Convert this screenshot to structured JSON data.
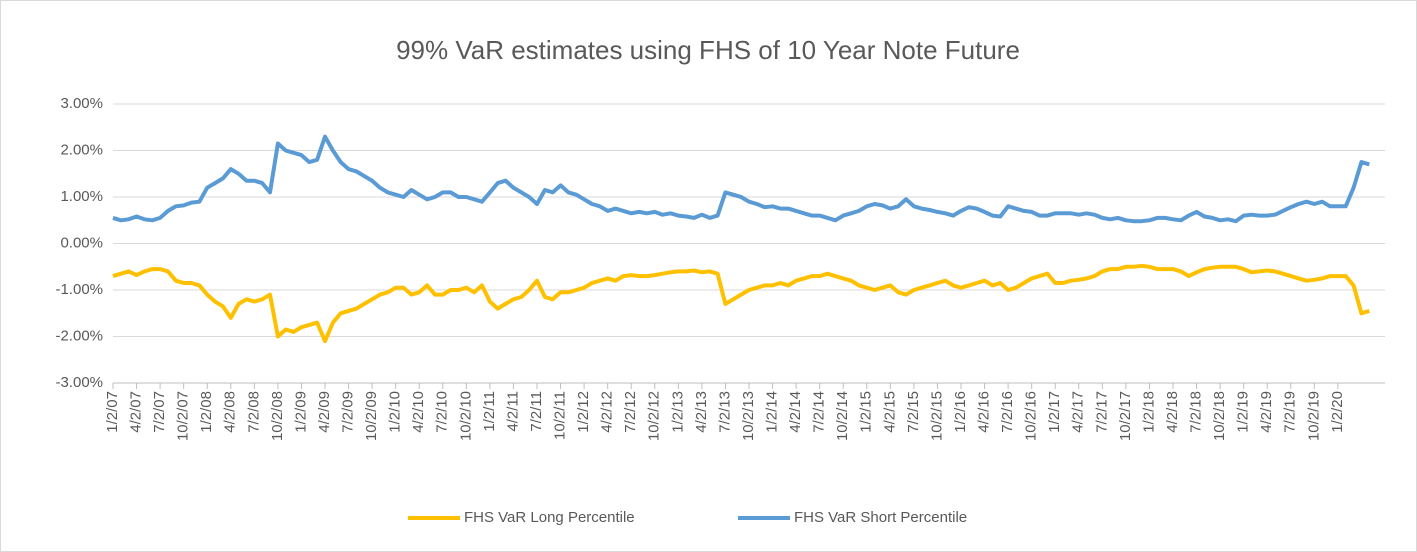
{
  "chart_data": {
    "type": "line",
    "title": "99% VaR estimates using FHS of 10 Year Note Future",
    "categories": [
      "1/2/07",
      null,
      null,
      "4/2/07",
      null,
      null,
      "7/2/07",
      null,
      null,
      "10/2/07",
      null,
      null,
      "1/2/08",
      null,
      null,
      "4/2/08",
      null,
      null,
      "7/2/08",
      null,
      null,
      "10/2/08",
      null,
      null,
      "1/2/09",
      null,
      null,
      "4/2/09",
      null,
      null,
      "7/2/09",
      null,
      null,
      "10/2/09",
      null,
      null,
      "1/2/10",
      null,
      null,
      "4/2/10",
      null,
      null,
      "7/2/10",
      null,
      null,
      "10/2/10",
      null,
      null,
      "1/2/11",
      null,
      null,
      "4/2/11",
      null,
      null,
      "7/2/11",
      null,
      null,
      "10/2/11",
      null,
      null,
      "1/2/12",
      null,
      null,
      "4/2/12",
      null,
      null,
      "7/2/12",
      null,
      null,
      "10/2/12",
      null,
      null,
      "1/2/13",
      null,
      null,
      "4/2/13",
      null,
      null,
      "7/2/13",
      null,
      null,
      "10/2/13",
      null,
      null,
      "1/2/14",
      null,
      null,
      "4/2/14",
      null,
      null,
      "7/2/14",
      null,
      null,
      "10/2/14",
      null,
      null,
      "1/2/15",
      null,
      null,
      "4/2/15",
      null,
      null,
      "7/2/15",
      null,
      null,
      "10/2/15",
      null,
      null,
      "1/2/16",
      null,
      null,
      "4/2/16",
      null,
      null,
      "7/2/16",
      null,
      null,
      "10/2/16",
      null,
      null,
      "1/2/17",
      null,
      null,
      "4/2/17",
      null,
      null,
      "7/2/17",
      null,
      null,
      "10/2/17",
      null,
      null,
      "1/2/18",
      null,
      null,
      "4/2/18",
      null,
      null,
      "7/2/18",
      null,
      null,
      "10/2/18",
      null,
      null,
      "1/2/19",
      null,
      null,
      "4/2/19",
      null,
      null,
      "7/2/19",
      null,
      null,
      "10/2/19",
      null,
      null,
      "1/2/20",
      null,
      null,
      null,
      null
    ],
    "series": [
      {
        "name": "FHS VaR Long Percentile",
        "color": "#FFC000",
        "values": [
          -0.7,
          -0.65,
          -0.6,
          -0.68,
          -0.6,
          -0.55,
          -0.55,
          -0.6,
          -0.8,
          -0.85,
          -0.85,
          -0.9,
          -1.1,
          -1.25,
          -1.35,
          -1.6,
          -1.3,
          -1.2,
          -1.25,
          -1.2,
          -1.1,
          -2.0,
          -1.85,
          -1.9,
          -1.8,
          -1.75,
          -1.7,
          -2.1,
          -1.7,
          -1.5,
          -1.45,
          -1.4,
          -1.3,
          -1.2,
          -1.1,
          -1.05,
          -0.95,
          -0.95,
          -1.1,
          -1.05,
          -0.9,
          -1.1,
          -1.1,
          -1.0,
          -1.0,
          -0.95,
          -1.05,
          -0.9,
          -1.25,
          -1.4,
          -1.3,
          -1.2,
          -1.15,
          -1.0,
          -0.8,
          -1.15,
          -1.2,
          -1.05,
          -1.05,
          -1.0,
          -0.95,
          -0.85,
          -0.8,
          -0.75,
          -0.8,
          -0.7,
          -0.68,
          -0.7,
          -0.7,
          -0.68,
          -0.65,
          -0.62,
          -0.6,
          -0.6,
          -0.58,
          -0.62,
          -0.6,
          -0.65,
          -1.3,
          -1.2,
          -1.1,
          -1.0,
          -0.95,
          -0.9,
          -0.9,
          -0.85,
          -0.9,
          -0.8,
          -0.75,
          -0.7,
          -0.7,
          -0.65,
          -0.7,
          -0.75,
          -0.8,
          -0.9,
          -0.95,
          -1.0,
          -0.95,
          -0.9,
          -1.05,
          -1.1,
          -1.0,
          -0.95,
          -0.9,
          -0.85,
          -0.8,
          -0.9,
          -0.95,
          -0.9,
          -0.85,
          -0.8,
          -0.9,
          -0.85,
          -1.0,
          -0.95,
          -0.85,
          -0.75,
          -0.7,
          -0.65,
          -0.85,
          -0.85,
          -0.8,
          -0.78,
          -0.75,
          -0.7,
          -0.6,
          -0.55,
          -0.55,
          -0.5,
          -0.5,
          -0.48,
          -0.5,
          -0.55,
          -0.55,
          -0.55,
          -0.6,
          -0.7,
          -0.62,
          -0.55,
          -0.52,
          -0.5,
          -0.5,
          -0.5,
          -0.55,
          -0.62,
          -0.6,
          -0.58,
          -0.6,
          -0.65,
          -0.7,
          -0.75,
          -0.8,
          -0.78,
          -0.75,
          -0.7,
          -0.7,
          -0.7,
          -0.9,
          -1.5,
          -1.45
        ]
      },
      {
        "name": "FHS VaR Short Percentile",
        "color": "#5B9BD5",
        "values": [
          0.55,
          0.5,
          0.52,
          0.58,
          0.52,
          0.5,
          0.55,
          0.7,
          0.8,
          0.82,
          0.88,
          0.9,
          1.2,
          1.3,
          1.4,
          1.6,
          1.5,
          1.35,
          1.35,
          1.3,
          1.1,
          2.15,
          2.0,
          1.95,
          1.9,
          1.75,
          1.8,
          2.3,
          2.0,
          1.75,
          1.6,
          1.55,
          1.45,
          1.35,
          1.2,
          1.1,
          1.05,
          1.0,
          1.15,
          1.05,
          0.95,
          1.0,
          1.1,
          1.1,
          1.0,
          1.0,
          0.95,
          0.9,
          1.1,
          1.3,
          1.35,
          1.2,
          1.1,
          1.0,
          0.85,
          1.15,
          1.1,
          1.25,
          1.1,
          1.05,
          0.95,
          0.85,
          0.8,
          0.7,
          0.75,
          0.7,
          0.65,
          0.68,
          0.65,
          0.68,
          0.62,
          0.65,
          0.6,
          0.58,
          0.55,
          0.62,
          0.55,
          0.6,
          1.1,
          1.05,
          1.0,
          0.9,
          0.85,
          0.78,
          0.8,
          0.75,
          0.75,
          0.7,
          0.65,
          0.6,
          0.6,
          0.55,
          0.5,
          0.6,
          0.65,
          0.7,
          0.8,
          0.85,
          0.82,
          0.75,
          0.8,
          0.95,
          0.8,
          0.75,
          0.72,
          0.68,
          0.65,
          0.6,
          0.7,
          0.78,
          0.75,
          0.68,
          0.6,
          0.58,
          0.8,
          0.75,
          0.7,
          0.68,
          0.6,
          0.6,
          0.65,
          0.65,
          0.65,
          0.62,
          0.65,
          0.62,
          0.55,
          0.52,
          0.55,
          0.5,
          0.48,
          0.48,
          0.5,
          0.55,
          0.55,
          0.52,
          0.5,
          0.6,
          0.68,
          0.58,
          0.55,
          0.5,
          0.52,
          0.48,
          0.6,
          0.62,
          0.6,
          0.6,
          0.62,
          0.7,
          0.78,
          0.85,
          0.9,
          0.85,
          0.9,
          0.8,
          0.8,
          0.8,
          1.2,
          1.75,
          1.7
        ]
      }
    ],
    "ylim": [
      -3,
      3
    ],
    "yticks": [
      {
        "value": -3,
        "label": "-3.00%"
      },
      {
        "value": -2,
        "label": "-2.00%"
      },
      {
        "value": -1,
        "label": "-1.00%"
      },
      {
        "value": 0,
        "label": "0.00%"
      },
      {
        "value": 1,
        "label": "1.00%"
      },
      {
        "value": 2,
        "label": "2.00%"
      },
      {
        "value": 3,
        "label": "3.00%"
      }
    ],
    "grid": true,
    "legend": "bottom"
  }
}
